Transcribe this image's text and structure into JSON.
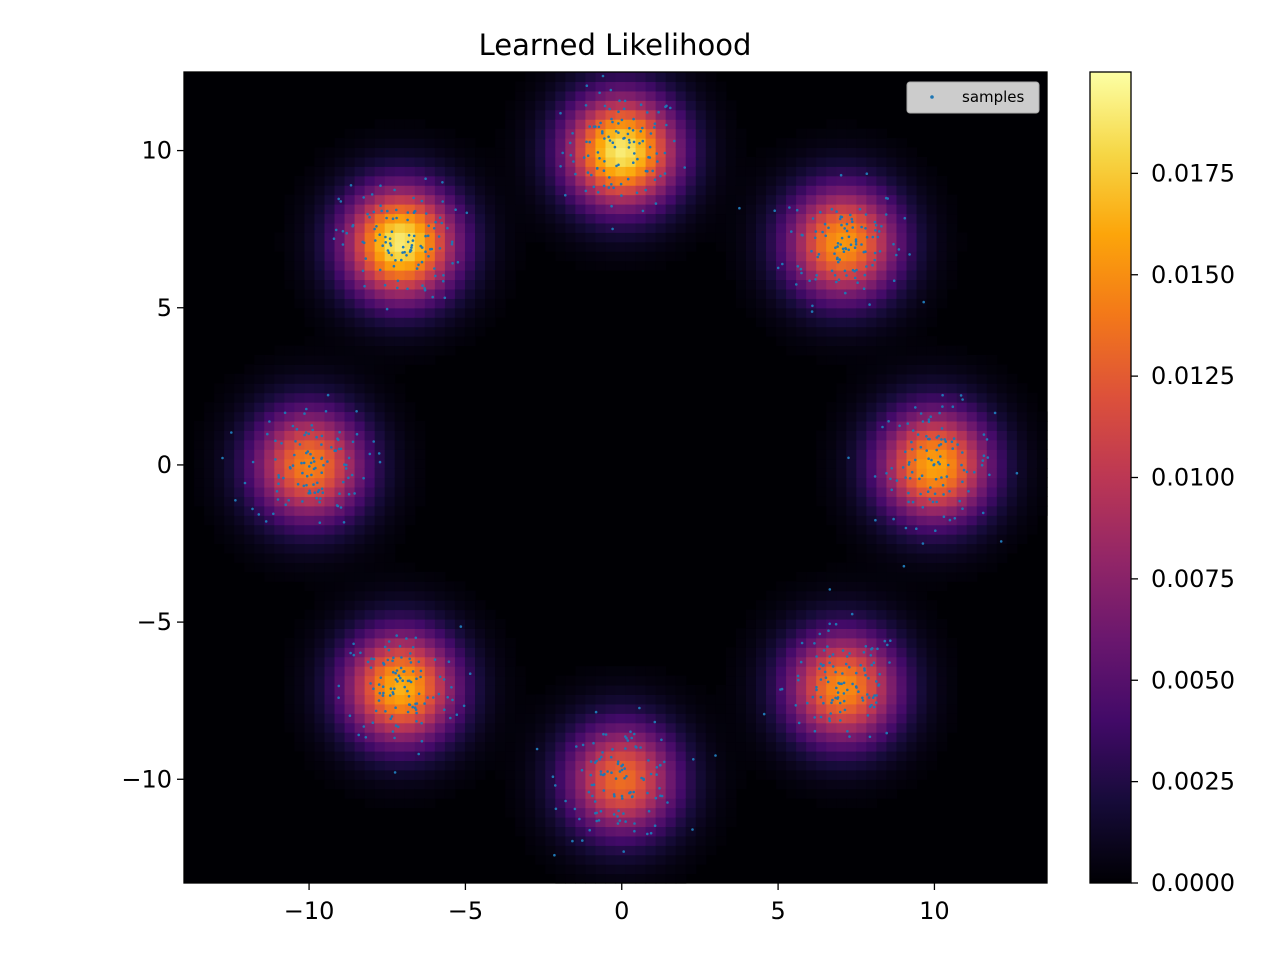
{
  "chart_data": {
    "type": "heatmap",
    "title": "Learned Likelihood",
    "xlabel": "",
    "ylabel": "",
    "xlim": [
      -14,
      13.6
    ],
    "ylim": [
      -13.3,
      12.5
    ],
    "x_ticks": [
      -10,
      -5,
      0,
      5,
      10
    ],
    "x_tick_labels": [
      "−10",
      "−5",
      "0",
      "5",
      "10"
    ],
    "y_ticks": [
      10,
      5,
      0,
      -5,
      -10
    ],
    "y_tick_labels": [
      "10",
      "5",
      "0",
      "−5",
      "−10"
    ],
    "colormap": "inferno",
    "colorbar": {
      "range": [
        0,
        0.02
      ],
      "ticks": [
        0.0,
        0.0025,
        0.005,
        0.0075,
        0.01,
        0.0125,
        0.015,
        0.0175
      ],
      "tick_labels": [
        "0.0000",
        "0.0025",
        "0.0050",
        "0.0075",
        "0.0100",
        "0.0125",
        "0.0150",
        "0.0175"
      ]
    },
    "legend": {
      "placement": "upper right",
      "entries": [
        "samples"
      ]
    },
    "sample_color": "#1f77b4",
    "grid": false,
    "modes": [
      {
        "center": [
          0,
          10
        ],
        "peak": 0.019
      },
      {
        "center": [
          7.07,
          7.07
        ],
        "peak": 0.0155
      },
      {
        "center": [
          10,
          0
        ],
        "peak": 0.016
      },
      {
        "center": [
          7.07,
          -7.07
        ],
        "peak": 0.015
      },
      {
        "center": [
          0,
          -10
        ],
        "peak": 0.0135
      },
      {
        "center": [
          -7.07,
          -7.07
        ],
        "peak": 0.0165
      },
      {
        "center": [
          -10,
          0
        ],
        "peak": 0.0145
      },
      {
        "center": [
          -7.07,
          7.07
        ],
        "peak": 0.019
      }
    ]
  }
}
